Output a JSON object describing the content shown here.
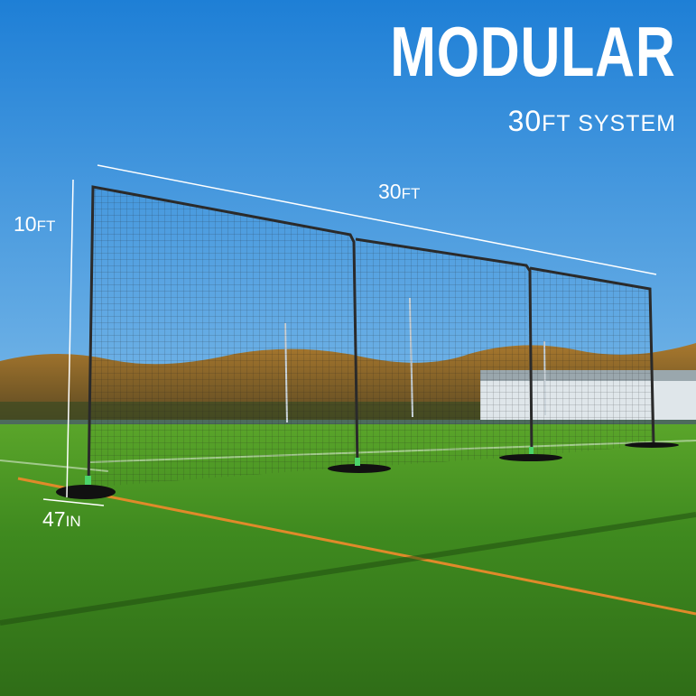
{
  "headline": {
    "title": "MODULAR",
    "subtitle_number": "30",
    "subtitle_rest": "FT SYSTEM"
  },
  "dimensions": {
    "width": {
      "number": "30",
      "unit": "FT"
    },
    "height": {
      "number": "10",
      "unit": "FT"
    },
    "depth": {
      "number": "47",
      "unit": "IN"
    }
  },
  "colors": {
    "sky_top": "#1e7fd6",
    "sky_bottom": "#b7d9ef",
    "grass": "#3f8a1f",
    "line_orange": "#e08a2a",
    "frame": "#2a2a2a",
    "text": "#ffffff"
  }
}
